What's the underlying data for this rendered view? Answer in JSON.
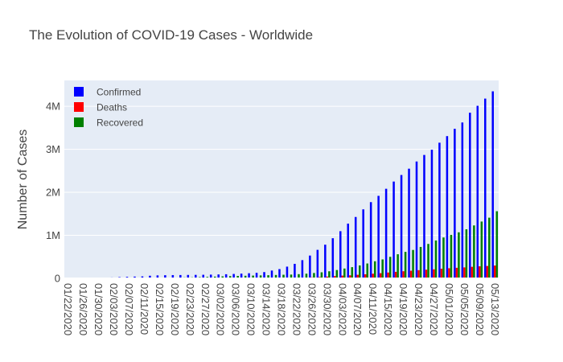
{
  "chart_data": {
    "type": "bar",
    "title": "The Evolution of COVID-19 Cases - Worldwide",
    "xlabel": "",
    "ylabel": "Number of Cases",
    "y_ticks": [
      {
        "value": 0,
        "label": "0"
      },
      {
        "value": 1000000,
        "label": "1M"
      },
      {
        "value": 2000000,
        "label": "2M"
      },
      {
        "value": 3000000,
        "label": "3M"
      },
      {
        "value": 4000000,
        "label": "4M"
      }
    ],
    "ylim": [
      0,
      4600000
    ],
    "x_tick_labels": [
      "01/22/2020",
      "01/26/2020",
      "01/30/2020",
      "02/03/2020",
      "02/07/2020",
      "02/11/2020",
      "02/15/2020",
      "02/19/2020",
      "02/23/2020",
      "02/27/2020",
      "03/02/2020",
      "03/06/2020",
      "03/10/2020",
      "03/14/2020",
      "03/18/2020",
      "03/22/2020",
      "03/26/2020",
      "03/30/2020",
      "04/03/2020",
      "04/07/2020",
      "04/11/2020",
      "04/15/2020",
      "04/19/2020",
      "04/23/2020",
      "04/27/2020",
      "05/01/2020",
      "05/05/2020",
      "05/09/2020",
      "05/13/2020"
    ],
    "legend_position": "top-left",
    "grid": true,
    "categories": [
      "01/22/2020",
      "01/24/2020",
      "01/26/2020",
      "01/28/2020",
      "01/30/2020",
      "02/01/2020",
      "02/03/2020",
      "02/05/2020",
      "02/07/2020",
      "02/09/2020",
      "02/11/2020",
      "02/13/2020",
      "02/15/2020",
      "02/17/2020",
      "02/19/2020",
      "02/21/2020",
      "02/23/2020",
      "02/25/2020",
      "02/27/2020",
      "02/29/2020",
      "03/02/2020",
      "03/04/2020",
      "03/06/2020",
      "03/08/2020",
      "03/10/2020",
      "03/12/2020",
      "03/14/2020",
      "03/16/2020",
      "03/18/2020",
      "03/20/2020",
      "03/22/2020",
      "03/24/2020",
      "03/26/2020",
      "03/28/2020",
      "03/30/2020",
      "04/01/2020",
      "04/03/2020",
      "04/05/2020",
      "04/07/2020",
      "04/09/2020",
      "04/11/2020",
      "04/13/2020",
      "04/15/2020",
      "04/17/2020",
      "04/19/2020",
      "04/21/2020",
      "04/23/2020",
      "04/25/2020",
      "04/27/2020",
      "04/29/2020",
      "05/01/2020",
      "05/03/2020",
      "05/05/2020",
      "05/07/2020",
      "05/09/2020",
      "05/11/2020",
      "05/13/2020"
    ],
    "series": [
      {
        "name": "Confirmed",
        "color": "#0000ff",
        "values": [
          555,
          941,
          2118,
          5578,
          9802,
          14557,
          20630,
          28266,
          34888,
          40554,
          45226,
          60370,
          68583,
          72433,
          75204,
          76840,
          78958,
          80415,
          82756,
          86011,
          90306,
          95120,
          101784,
          109821,
          118592,
          128343,
          145193,
          181546,
          214910,
          272166,
          337020,
          422942,
          529591,
          662073,
          782365,
          932605,
          1095917,
          1272115,
          1426096,
          1603719,
          1771514,
          1917320,
          2082000,
          2250000,
          2402000,
          2549000,
          2716000,
          2868000,
          2990000,
          3153000,
          3306000,
          3476000,
          3623000,
          3850000,
          4010000,
          4178000,
          4347000
        ]
      },
      {
        "name": "Deaths",
        "color": "#ff0000",
        "values": [
          17,
          26,
          56,
          133,
          213,
          362,
          427,
          565,
          724,
          906,
          1113,
          1369,
          1666,
          1870,
          2122,
          2251,
          2469,
          2708,
          2814,
          2941,
          3085,
          3254,
          3460,
          3803,
          4262,
          4720,
          5404,
          7138,
          8733,
          11304,
          14610,
          19043,
          24035,
          30864,
          40618,
          53009,
          63470,
          69374,
          82171,
          94000,
          108000,
          120000,
          135000,
          151000,
          165000,
          177000,
          190000,
          201000,
          210000,
          223000,
          235000,
          245000,
          254000,
          268000,
          280000,
          287000,
          297000
        ]
      },
      {
        "name": "Recovered",
        "color": "#008000",
        "values": [
          28,
          36,
          52,
          107,
          143,
          222,
          623,
          1124,
          2011,
          3244,
          5150,
          6295,
          9395,
          12552,
          16121,
          22688,
          23394,
          27905,
          33277,
          39782,
          45602,
          51171,
          55865,
          60096,
          64404,
          68324,
          72624,
          78088,
          83313,
          87256,
          97243,
          108000,
          124000,
          140000,
          164000,
          193000,
          228000,
          260000,
          300000,
          345000,
          397000,
          440000,
          500000,
          560000,
          615000,
          660000,
          730000,
          800000,
          880000,
          950000,
          1010000,
          1070000,
          1140000,
          1230000,
          1320000,
          1410000,
          1560000
        ]
      }
    ]
  }
}
